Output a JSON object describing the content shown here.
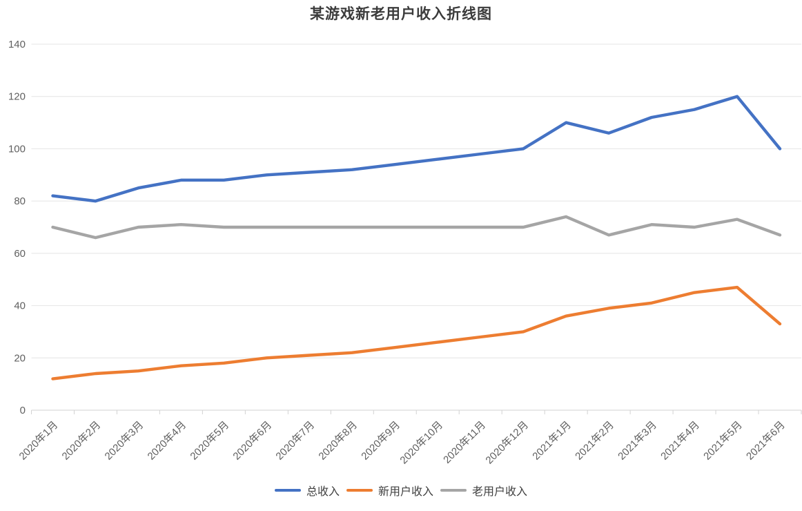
{
  "chart_data": {
    "type": "line",
    "title": "某游戏新老用户收入折线图",
    "xlabel": "",
    "ylabel": "",
    "categories": [
      "2020年1月",
      "2020年2月",
      "2020年3月",
      "2020年4月",
      "2020年5月",
      "2020年6月",
      "2020年7月",
      "2020年8月",
      "2020年9月",
      "2020年10月",
      "2020年11月",
      "2020年12月",
      "2021年1月",
      "2021年2月",
      "2021年3月",
      "2021年4月",
      "2021年5月",
      "2021年6月"
    ],
    "series": [
      {
        "key": "total-revenue",
        "name": "总收入",
        "color": "#4472C4",
        "values": [
          82,
          80,
          85,
          88,
          88,
          90,
          91,
          92,
          94,
          96,
          98,
          100,
          110,
          106,
          112,
          115,
          120,
          100
        ]
      },
      {
        "key": "new-user-revenue",
        "name": "新用户收入",
        "color": "#ED7D31",
        "values": [
          12,
          14,
          15,
          17,
          18,
          20,
          21,
          22,
          24,
          26,
          28,
          30,
          36,
          39,
          41,
          45,
          47,
          33
        ]
      },
      {
        "key": "old-user-revenue",
        "name": "老用户收入",
        "color": "#A5A5A5",
        "values": [
          70,
          66,
          70,
          71,
          70,
          70,
          70,
          70,
          70,
          70,
          70,
          70,
          74,
          67,
          71,
          70,
          73,
          67
        ]
      }
    ],
    "ylim": [
      0,
      140
    ],
    "yticks": [
      0,
      20,
      40,
      60,
      80,
      100,
      120,
      140
    ],
    "grid": true,
    "legend_position": "bottom",
    "colors": {
      "title_text": "#3b3b3b",
      "axis_text": "#606060",
      "gridline": "#e4e4e4",
      "axis_line": "#d2d2d2",
      "background": "#ffffff"
    }
  }
}
